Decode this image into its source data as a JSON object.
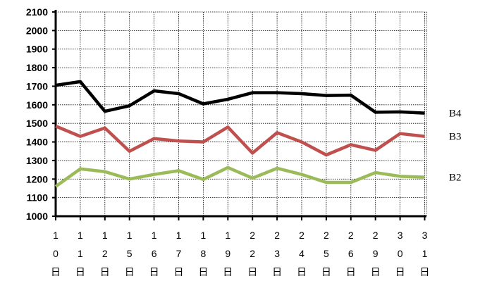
{
  "chart_data": {
    "type": "line",
    "title": "",
    "xlabel": "",
    "ylabel": "",
    "ylim": [
      1000,
      2100
    ],
    "yticks": [
      1000,
      1100,
      1200,
      1300,
      1400,
      1500,
      1600,
      1700,
      1800,
      1900,
      2000,
      2100
    ],
    "categories": [
      [
        "1",
        "0",
        "日"
      ],
      [
        "1",
        "1",
        "日"
      ],
      [
        "1",
        "2",
        "日"
      ],
      [
        "1",
        "5",
        "日"
      ],
      [
        "1",
        "6",
        "日"
      ],
      [
        "1",
        "7",
        "日"
      ],
      [
        "1",
        "8",
        "日"
      ],
      [
        "1",
        "9",
        "日"
      ],
      [
        "2",
        "2",
        "日"
      ],
      [
        "2",
        "3",
        "日"
      ],
      [
        "2",
        "4",
        "日"
      ],
      [
        "2",
        "5",
        "日"
      ],
      [
        "2",
        "6",
        "日"
      ],
      [
        "2",
        "9",
        "日"
      ],
      [
        "3",
        "0",
        "日"
      ],
      [
        "3",
        "1",
        "日"
      ]
    ],
    "grid": true,
    "legend_placement": "right",
    "series": [
      {
        "name": "B4",
        "color": "#000000",
        "values": [
          1705,
          1725,
          1565,
          1595,
          1675,
          1660,
          1605,
          1630,
          1665,
          1665,
          1660,
          1650,
          1652,
          1560,
          1562,
          1555
        ]
      },
      {
        "name": "B3",
        "color": "#c0504d",
        "values": [
          1485,
          1430,
          1475,
          1350,
          1418,
          1405,
          1400,
          1480,
          1340,
          1450,
          1400,
          1330,
          1385,
          1355,
          1445,
          1430
        ]
      },
      {
        "name": "B2",
        "color": "#9bbb59",
        "values": [
          1160,
          1255,
          1240,
          1200,
          1225,
          1245,
          1198,
          1262,
          1205,
          1258,
          1225,
          1182,
          1182,
          1235,
          1215,
          1210
        ]
      }
    ]
  }
}
